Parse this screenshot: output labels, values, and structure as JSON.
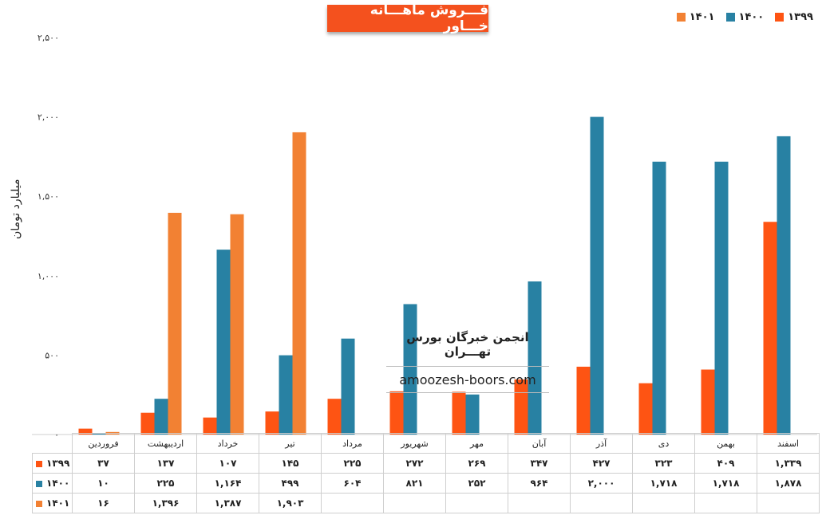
{
  "chart_data": {
    "type": "bar",
    "title": "فـــروش ماهـــانه خـــاور",
    "ylabel": "میلیارد تومان",
    "ylim": [
      0,
      2500
    ],
    "yticks": [
      "۰",
      "۵۰۰",
      "۱,۰۰۰",
      "۱,۵۰۰",
      "۲,۰۰۰",
      "۲,۵۰۰"
    ],
    "categories": [
      "فروردین",
      "اردیبهشت",
      "خرداد",
      "تیر",
      "مرداد",
      "شهریور",
      "مهر",
      "آبان",
      "آذر",
      "دی",
      "بهمن",
      "اسفند"
    ],
    "series": [
      {
        "name": "۱۳۹۹",
        "color": "#fe5413",
        "values": [
          37,
          137,
          107,
          145,
          225,
          272,
          269,
          347,
          427,
          323,
          409,
          1339
        ],
        "labels": [
          "۳۷",
          "۱۳۷",
          "۱۰۷",
          "۱۴۵",
          "۲۲۵",
          "۲۷۲",
          "۲۶۹",
          "۳۴۷",
          "۴۲۷",
          "۳۲۳",
          "۴۰۹",
          "۱,۳۳۹"
        ]
      },
      {
        "name": "۱۴۰۰",
        "color": "#2881a3",
        "values": [
          10,
          225,
          1164,
          499,
          604,
          821,
          252,
          964,
          2000,
          1718,
          1718,
          1878
        ],
        "labels": [
          "۱۰",
          "۲۲۵",
          "۱,۱۶۴",
          "۴۹۹",
          "۶۰۴",
          "۸۲۱",
          "۲۵۲",
          "۹۶۴",
          "۲,۰۰۰",
          "۱,۷۱۸",
          "۱,۷۱۸",
          "۱,۸۷۸"
        ]
      },
      {
        "name": "۱۴۰۱",
        "color": "#f28133",
        "values": [
          16,
          1396,
          1387,
          1903,
          null,
          null,
          null,
          null,
          null,
          null,
          null,
          null
        ],
        "labels": [
          "۱۶",
          "۱,۳۹۶",
          "۱,۳۸۷",
          "۱,۹۰۳",
          "",
          "",
          "",
          "",
          "",
          "",
          "",
          ""
        ]
      }
    ],
    "legend_position": "top-right",
    "grid": false
  },
  "watermark": {
    "title": "انجمن خبرگان بورس تهـــران",
    "url": "amoozesh-boors.com"
  }
}
